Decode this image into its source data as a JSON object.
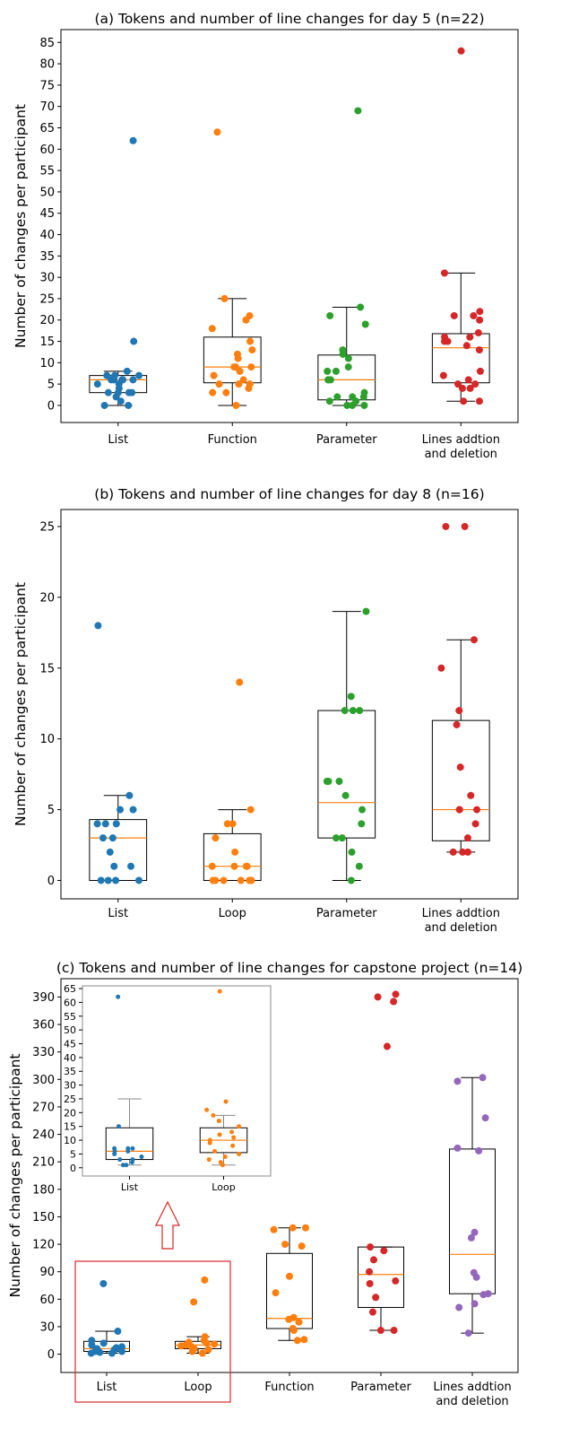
{
  "colors": {
    "List": "#1f77b4",
    "Function": "#ff7f0e",
    "Loop": "#ff7f0e",
    "Parameter": "#2ca02c",
    "Lines addtion and deletion": "#d62728",
    "capstone_Parameter": "#d62728",
    "capstone_Lines": "#9467bd",
    "median": "#ff7f0e",
    "box": "#000000",
    "highlight": "#d62728"
  },
  "chart_data": [
    {
      "type": "box",
      "title": "(a) Tokens and number of line changes for day 5 (n=22)",
      "ylabel": "Number of changes per participant",
      "xlabel": "",
      "ylim": [
        -4,
        88
      ],
      "yticks": [
        0,
        5,
        10,
        15,
        20,
        25,
        30,
        35,
        40,
        45,
        50,
        55,
        60,
        65,
        70,
        75,
        80,
        85
      ],
      "grid": false,
      "categories": [
        "List",
        "Function",
        "Parameter",
        "Lines addtion and deletion"
      ],
      "series": [
        {
          "q1": 3,
          "median": 6,
          "q3": 7,
          "whisker_low": 0,
          "whisker_high": 8,
          "points": [
            0,
            0,
            1,
            2,
            3,
            3,
            3,
            3,
            4,
            5,
            5,
            6,
            6,
            6,
            6,
            6,
            7,
            7,
            7,
            8,
            15,
            62
          ]
        },
        {
          "q1": 5.3,
          "median": 9,
          "q3": 16,
          "whisker_low": 0,
          "whisker_high": 25,
          "points": [
            0,
            3,
            3,
            4,
            5,
            5,
            5,
            6,
            7,
            8,
            9,
            9,
            9,
            11,
            12,
            13,
            15,
            18,
            20,
            21,
            25,
            64
          ]
        },
        {
          "q1": 1.3,
          "median": 6,
          "q3": 11.8,
          "whisker_low": 0,
          "whisker_high": 23,
          "points": [
            0,
            0,
            0,
            1,
            1,
            2,
            2,
            2,
            3,
            6,
            6,
            6,
            8,
            8,
            9,
            11,
            12,
            13,
            19,
            21,
            23,
            69
          ]
        },
        {
          "q1": 5.3,
          "median": 13.5,
          "q3": 16.8,
          "whisker_low": 1,
          "whisker_high": 31,
          "points": [
            1,
            1,
            4,
            4,
            5,
            5,
            6,
            7,
            8,
            13,
            14,
            15,
            15,
            16,
            16,
            17,
            20,
            21,
            21,
            22,
            31,
            83
          ]
        }
      ]
    },
    {
      "type": "box",
      "title": "(b) Tokens and number of line changes for day 8 (n=16)",
      "ylabel": "Number of changes per participant",
      "xlabel": "",
      "ylim": [
        -1.3,
        26.2
      ],
      "yticks": [
        0,
        5,
        10,
        15,
        20,
        25
      ],
      "grid": false,
      "categories": [
        "List",
        "Loop",
        "Parameter",
        "Lines addtion and deletion"
      ],
      "series": [
        {
          "q1": 0,
          "median": 3,
          "q3": 4.3,
          "whisker_low": 0,
          "whisker_high": 6,
          "points": [
            0,
            0,
            0,
            0,
            1,
            1,
            2,
            3,
            3,
            4,
            4,
            4,
            5,
            5,
            6,
            18
          ]
        },
        {
          "q1": 0,
          "median": 1,
          "q3": 3.3,
          "whisker_low": 0,
          "whisker_high": 5,
          "points": [
            0,
            0,
            0,
            0,
            0,
            0,
            1,
            1,
            1,
            1,
            2,
            3,
            4,
            4,
            5,
            14
          ]
        },
        {
          "q1": 3,
          "median": 5.5,
          "q3": 12,
          "whisker_low": 0,
          "whisker_high": 19,
          "points": [
            0,
            1,
            2,
            3,
            3,
            4,
            5,
            6,
            7,
            7,
            7,
            12,
            12,
            12,
            13,
            19
          ]
        },
        {
          "q1": 2.8,
          "median": 5,
          "q3": 11.3,
          "whisker_low": 2,
          "whisker_high": 17,
          "points": [
            2,
            2,
            2,
            3,
            4,
            5,
            5,
            5,
            6,
            8,
            11,
            12,
            15,
            17,
            25,
            25
          ]
        }
      ]
    },
    {
      "type": "box",
      "title": "(c) Tokens and number of line changes for capstone project (n=14)",
      "ylabel": "Number of changes per participant",
      "xlabel": "",
      "ylim": [
        -20,
        410
      ],
      "yticks": [
        0,
        30,
        60,
        90,
        120,
        150,
        180,
        210,
        240,
        270,
        300,
        330,
        360,
        390
      ],
      "grid": false,
      "categories": [
        "List",
        "Loop",
        "Function",
        "Parameter",
        "Lines addtion and deletion"
      ],
      "series": [
        {
          "q1": 3,
          "median": 6,
          "q3": 14,
          "whisker_low": 1,
          "whisker_high": 25,
          "points": [
            1,
            1,
            2,
            3,
            3,
            5,
            6,
            7,
            8,
            10,
            12,
            15,
            25,
            77
          ]
        },
        {
          "q1": 6,
          "median": 10,
          "q3": 14,
          "whisker_low": 1,
          "whisker_high": 19,
          "points": [
            1,
            3,
            5,
            6,
            8,
            9,
            10,
            11,
            12,
            13,
            15,
            19,
            57,
            81
          ]
        },
        {
          "q1": 28,
          "median": 39,
          "q3": 110,
          "whisker_low": 15,
          "whisker_high": 138,
          "points": [
            15,
            16,
            26,
            28,
            35,
            38,
            40,
            67,
            85,
            118,
            120,
            136,
            138,
            138
          ]
        },
        {
          "q1": 51,
          "median": 87,
          "q3": 117,
          "whisker_low": 26,
          "whisker_high": 117,
          "points": [
            26,
            26,
            46,
            62,
            77,
            80,
            90,
            103,
            113,
            117,
            336,
            385,
            390,
            393
          ]
        },
        {
          "q1": 66,
          "median": 109,
          "q3": 224,
          "whisker_low": 23,
          "whisker_high": 302,
          "points": [
            23,
            51,
            55,
            65,
            66,
            84,
            89,
            127,
            133,
            222,
            225,
            258,
            298,
            302
          ]
        }
      ],
      "inset": {
        "ylim": [
          -3,
          66
        ],
        "yticks": [
          0,
          5,
          10,
          15,
          20,
          25,
          30,
          35,
          40,
          45,
          50,
          55,
          60,
          65
        ],
        "categories": [
          "List",
          "Loop"
        ],
        "series": [
          {
            "q1": 3,
            "median": 6,
            "q3": 14.5,
            "whisker_low": 1,
            "whisker_high": 25,
            "points": [
              1,
              1,
              2,
              3,
              3,
              4,
              5,
              6,
              6,
              7,
              7,
              7,
              15,
              62
            ]
          },
          {
            "q1": 5.5,
            "median": 10,
            "q3": 14.5,
            "whisker_low": 1,
            "whisker_high": 19,
            "points": [
              1,
              2,
              3,
              4,
              5,
              6,
              8,
              9,
              10,
              11,
              12,
              13,
              15,
              17,
              19,
              21,
              24,
              64
            ]
          }
        ]
      }
    }
  ]
}
